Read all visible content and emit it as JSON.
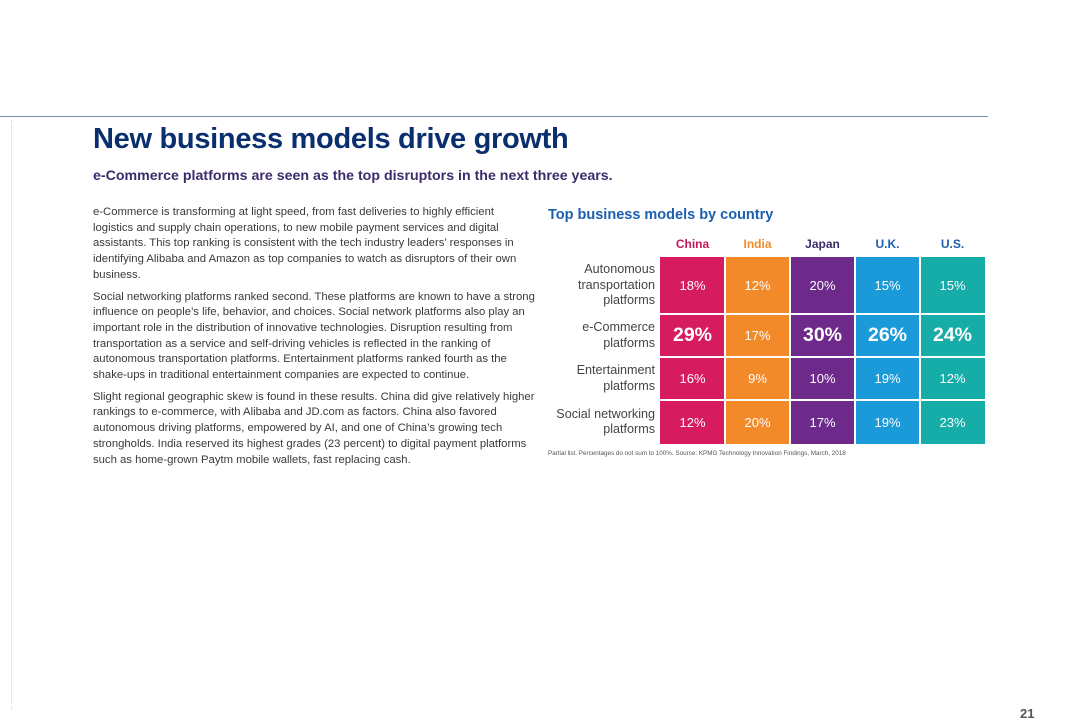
{
  "page": {
    "title": "New business models drive growth",
    "subtitle": "e-Commerce platforms are seen as the top disruptors in the next three years.",
    "page_number": "21"
  },
  "body": {
    "paragraphs": [
      "e-Commerce is transforming at light speed, from fast deliveries to highly efficient logistics and supply chain operations, to new mobile payment services and digital assistants. This top ranking is consistent with the tech industry leaders’ responses in identifying Alibaba and Amazon as top companies to watch as disruptors of their own business.",
      "Social networking platforms ranked second. These platforms are known to have a strong influence on people’s life, behavior, and choices. Social network platforms also play an important role in the distribution of innovative technologies. Disruption resulting from transportation as a service and self-driving vehicles is reflected in the ranking of autonomous transportation platforms. Entertainment platforms ranked fourth as the shake-ups in traditional entertainment companies are expected to continue.",
      "Slight regional geographic skew is found in these results. China did give relatively higher rankings to e-commerce, with Alibaba and JD.com as factors. China also favored autonomous driving platforms, empowered by AI, and one of China’s growing tech strongholds. India reserved its highest grades (23 percent) to digital payment platforms such as home-grown Paytm mobile wallets, fast replacing cash."
    ]
  },
  "chart_data": {
    "type": "table",
    "title": "Top business models by country",
    "columns": [
      {
        "name": "China",
        "color": "#d61c5e",
        "header_color": "#c2185b"
      },
      {
        "name": "India",
        "color": "#f28a2a",
        "header_color": "#f28a2a"
      },
      {
        "name": "Japan",
        "color": "#6d2a8a",
        "header_color": "#3d2b6b"
      },
      {
        "name": "U.K.",
        "color": "#1a9ad8",
        "header_color": "#1b5fae"
      },
      {
        "name": "U.S.",
        "color": "#16ada8",
        "header_color": "#1b5fae"
      }
    ],
    "rows": [
      {
        "label": "Autonomous transportation platforms",
        "values": [
          "18%",
          "12%",
          "20%",
          "15%",
          "15%"
        ],
        "highlight": [
          false,
          false,
          false,
          false,
          false
        ]
      },
      {
        "label": "e-Commerce platforms",
        "values": [
          "29%",
          "17%",
          "30%",
          "26%",
          "24%"
        ],
        "highlight": [
          true,
          false,
          true,
          true,
          true
        ]
      },
      {
        "label": "Entertainment platforms",
        "values": [
          "16%",
          "9%",
          "10%",
          "19%",
          "12%"
        ],
        "highlight": [
          false,
          false,
          false,
          false,
          false
        ]
      },
      {
        "label": "Social networking platforms",
        "values": [
          "12%",
          "20%",
          "17%",
          "19%",
          "23%"
        ],
        "highlight": [
          false,
          false,
          false,
          false,
          false
        ]
      }
    ],
    "footnote": "Partial list. Percentages do not sum to 100%. Source: KPMG Technology Innovation Findings, March, 2018"
  }
}
